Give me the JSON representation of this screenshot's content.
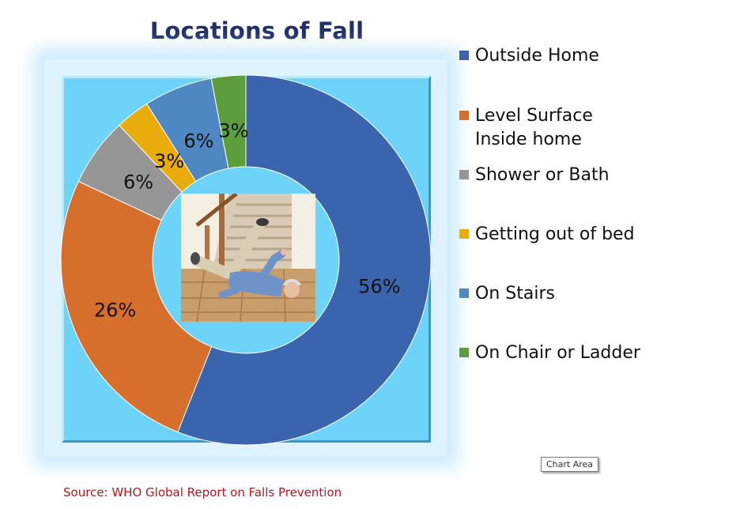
{
  "chart_data": {
    "type": "pie",
    "subtype": "doughnut",
    "title": "Locations of Fall",
    "categories": [
      "Outside Home",
      "Level Surface\nInside home",
      "Shower or Bath",
      "Getting out of bed",
      "On Stairs",
      "On Chair or Ladder"
    ],
    "values": [
      56,
      26,
      6,
      3,
      6,
      3
    ],
    "data_labels": [
      "56%",
      "26%",
      "6%",
      "3%",
      "6%",
      "3%"
    ],
    "colors": [
      "#3a64ad",
      "#d56f2b",
      "#969696",
      "#e8ac0b",
      "#4f87c2",
      "#5d9e3c"
    ],
    "legend_position": "right",
    "start_angle": "top, clockwise"
  },
  "styles": {
    "title_color": "#1f2f6b",
    "plot_background": "#6ed3f8",
    "source_color": "#c0141c"
  },
  "center_image": {
    "icon": "photo-elderly-man-fallen-at-foot-of-stairs"
  },
  "tooltip": {
    "label": "Chart Area"
  },
  "source": {
    "text": "Source: WHO Global Report on Falls Prevention"
  }
}
